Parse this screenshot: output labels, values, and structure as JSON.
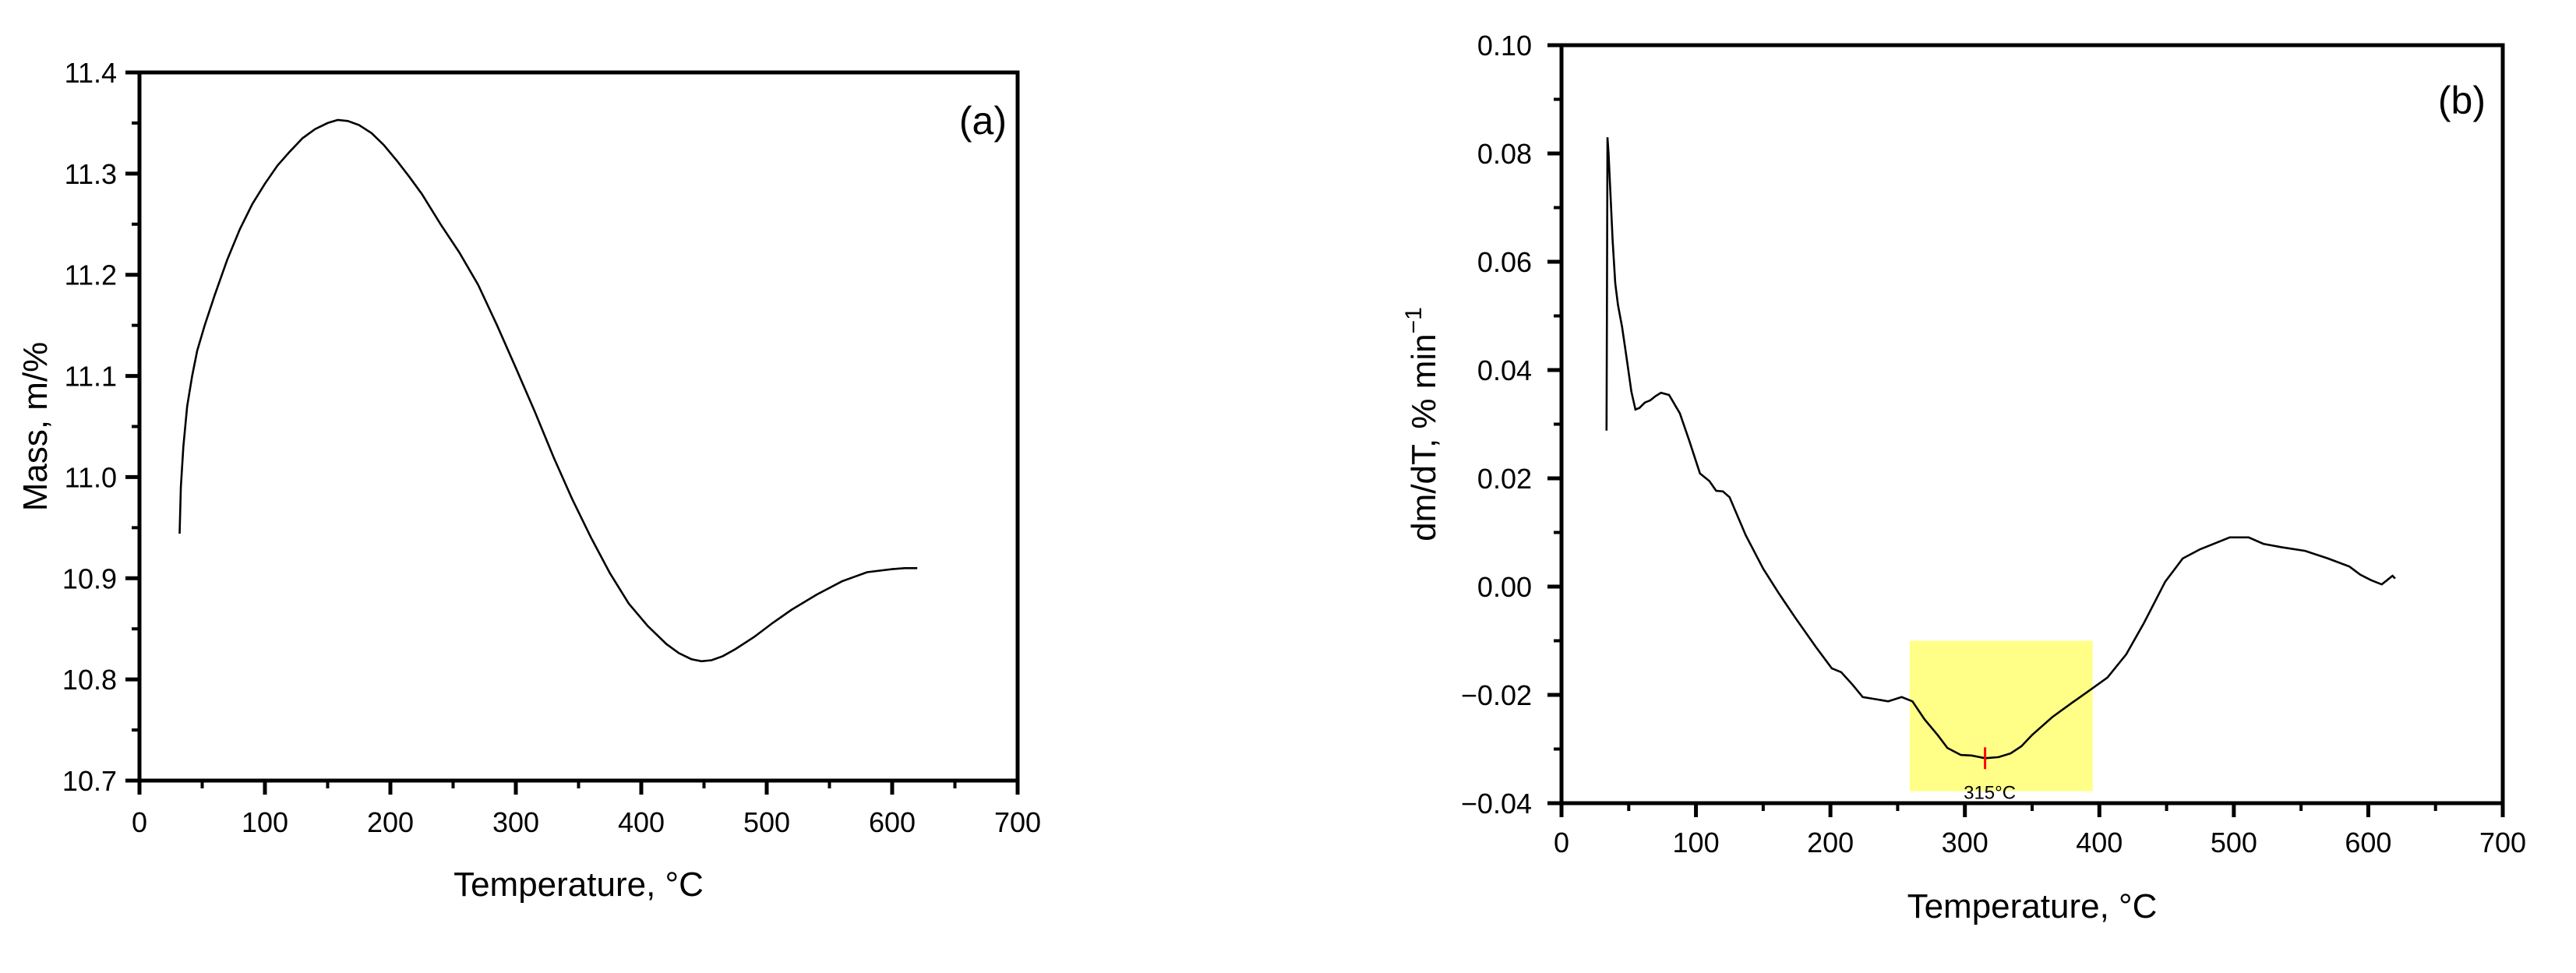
{
  "figure": {
    "panels": [
      "a",
      "b"
    ]
  },
  "chart_data": [
    {
      "type": "line",
      "panel_label": "(a)",
      "title": "",
      "xlabel": "Temperature, °C",
      "ylabel": "Mass, m/%",
      "xlim": [
        0,
        700
      ],
      "ylim": [
        10.7,
        11.4
      ],
      "xticks": [
        0,
        100,
        200,
        300,
        400,
        500,
        600,
        700
      ],
      "xtick_labels": [
        "0",
        "100",
        "200",
        "300",
        "400",
        "500",
        "600",
        "700"
      ],
      "yticks": [
        10.7,
        10.8,
        10.9,
        11.0,
        11.1,
        11.2,
        11.3,
        11.4
      ],
      "ytick_labels": [
        "10.7",
        "10.8",
        "10.9",
        "11.0",
        "11.1",
        "11.2",
        "11.3",
        "11.4"
      ],
      "grid": false,
      "legend": null,
      "series": [
        {
          "name": "Mass",
          "color": "#000000",
          "x": [
            32,
            33,
            35,
            38,
            42,
            46,
            52,
            60,
            70,
            80,
            90,
            100,
            110,
            120,
            130,
            140,
            150,
            158,
            166,
            175,
            185,
            195,
            205,
            215,
            225,
            240,
            255,
            270,
            285,
            300,
            315,
            330,
            345,
            360,
            375,
            390,
            405,
            420,
            430,
            440,
            448,
            456,
            465,
            475,
            490,
            505,
            520,
            540,
            560,
            580,
            600,
            610,
            620
          ],
          "y": [
            10.944,
            10.99,
            11.03,
            11.07,
            11.1,
            11.125,
            11.15,
            11.18,
            11.215,
            11.245,
            11.27,
            11.29,
            11.308,
            11.322,
            11.335,
            11.344,
            11.35,
            11.353,
            11.352,
            11.348,
            11.34,
            11.328,
            11.313,
            11.297,
            11.28,
            11.25,
            11.222,
            11.19,
            11.15,
            11.108,
            11.065,
            11.02,
            10.978,
            10.94,
            10.905,
            10.875,
            10.853,
            10.835,
            10.826,
            10.82,
            10.818,
            10.819,
            10.823,
            10.83,
            10.842,
            10.856,
            10.869,
            10.884,
            10.897,
            10.906,
            10.909,
            10.91,
            10.91
          ]
        }
      ],
      "annotations": []
    },
    {
      "type": "line",
      "panel_label": "(b)",
      "title": "",
      "xlabel": "Temperature, °C",
      "ylabel": "dm/dT, % min",
      "ylabel_superscript": "−1",
      "xlim": [
        0,
        700
      ],
      "ylim": [
        -0.04,
        0.1
      ],
      "xticks": [
        0,
        100,
        200,
        300,
        400,
        500,
        600,
        700
      ],
      "xtick_labels": [
        "0",
        "100",
        "200",
        "300",
        "400",
        "500",
        "600",
        "700"
      ],
      "yticks": [
        -0.04,
        -0.02,
        0.0,
        0.02,
        0.04,
        0.06,
        0.08,
        0.1
      ],
      "ytick_labels": [
        "−0.04",
        "−0.02",
        "0.00",
        "0.02",
        "0.04",
        "0.06",
        "0.08",
        "0.10"
      ],
      "grid": false,
      "legend": null,
      "series": [
        {
          "name": "dm/dT",
          "color": "#000000",
          "x": [
            33.5,
            33.8,
            34.2,
            35,
            36.5,
            38,
            40,
            42,
            45,
            48,
            52,
            55,
            58,
            62,
            66,
            70,
            74,
            80,
            88,
            95,
            103,
            110,
            115,
            120,
            125,
            137,
            150,
            162,
            174,
            189,
            201,
            208,
            216,
            224,
            234,
            243,
            253,
            261,
            270,
            280,
            287,
            297,
            305,
            315,
            325,
            334,
            342,
            350,
            365,
            380,
            392,
            406,
            420,
            433,
            449,
            462,
            475,
            486,
            497,
            511,
            522,
            535,
            553,
            570,
            586,
            594,
            602,
            610,
            614,
            618,
            620
          ],
          "y": [
            0.0288,
            0.05,
            0.083,
            0.08,
            0.072,
            0.064,
            0.056,
            0.052,
            0.048,
            0.043,
            0.036,
            0.0327,
            0.033,
            0.034,
            0.0344,
            0.0352,
            0.0358,
            0.0354,
            0.032,
            0.027,
            0.0209,
            0.0195,
            0.0177,
            0.0176,
            0.0165,
            0.0095,
            0.0033,
            -0.0014,
            -0.0058,
            -0.0111,
            -0.0151,
            -0.0158,
            -0.018,
            -0.0204,
            -0.0208,
            -0.0212,
            -0.0204,
            -0.0212,
            -0.0245,
            -0.0275,
            -0.0298,
            -0.0311,
            -0.0312,
            -0.0317,
            -0.0315,
            -0.0308,
            -0.0295,
            -0.0274,
            -0.0241,
            -0.0214,
            -0.0193,
            -0.0168,
            -0.0125,
            -0.0068,
            0.0009,
            0.0052,
            0.0069,
            0.008,
            0.0091,
            0.0091,
            0.0079,
            0.0073,
            0.0066,
            0.0052,
            0.0037,
            0.0022,
            0.0012,
            0.0004,
            0.0012,
            0.002,
            0.0015
          ]
        }
      ],
      "annotations": [
        {
          "type": "highlight-rect",
          "x0": 259,
          "x1": 395,
          "y0": -0.0378,
          "y1": -0.01,
          "color": "#FFFF88"
        },
        {
          "type": "marker",
          "x": 315,
          "y": -0.0317,
          "label": "315°C",
          "color": "#FF0000"
        }
      ]
    }
  ]
}
